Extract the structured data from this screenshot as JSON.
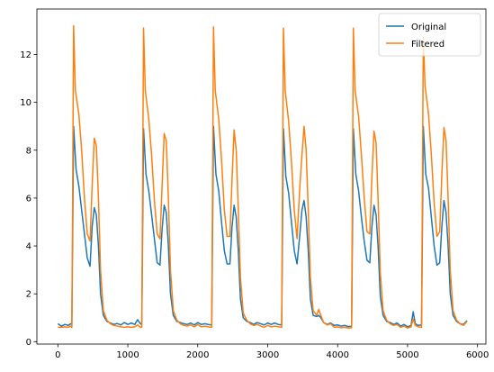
{
  "chart_data": {
    "type": "line",
    "title": "",
    "xlabel": "",
    "ylabel": "",
    "xlim": [
      -300,
      6120
    ],
    "ylim": [
      -0.1,
      13.9
    ],
    "xticks": [
      0,
      1000,
      2000,
      3000,
      4000,
      5000,
      6000
    ],
    "yticks": [
      0,
      2,
      4,
      6,
      8,
      10,
      12
    ],
    "grid": false,
    "legend_position": "top-right",
    "series": [
      {
        "name": "Original",
        "color": "#1f77b4",
        "points": [
          [
            0,
            0.75
          ],
          [
            50,
            0.65
          ],
          [
            100,
            0.72
          ],
          [
            150,
            0.68
          ],
          [
            180,
            0.75
          ],
          [
            200,
            0.72
          ],
          [
            225,
            9.0
          ],
          [
            260,
            7.2
          ],
          [
            300,
            6.5
          ],
          [
            340,
            5.5
          ],
          [
            380,
            4.5
          ],
          [
            420,
            3.5
          ],
          [
            460,
            3.15
          ],
          [
            490,
            4.8
          ],
          [
            520,
            5.6
          ],
          [
            550,
            5.3
          ],
          [
            580,
            4.0
          ],
          [
            610,
            2.0
          ],
          [
            650,
            1.1
          ],
          [
            700,
            0.85
          ],
          [
            750,
            0.78
          ],
          [
            800,
            0.72
          ],
          [
            850,
            0.76
          ],
          [
            900,
            0.7
          ],
          [
            950,
            0.8
          ],
          [
            1000,
            0.72
          ],
          [
            1050,
            0.78
          ],
          [
            1100,
            0.72
          ],
          [
            1140,
            0.92
          ],
          [
            1180,
            0.75
          ],
          [
            1200,
            0.72
          ],
          [
            1225,
            8.9
          ],
          [
            1260,
            7.0
          ],
          [
            1300,
            6.3
          ],
          [
            1340,
            5.3
          ],
          [
            1380,
            4.3
          ],
          [
            1420,
            3.3
          ],
          [
            1460,
            3.2
          ],
          [
            1490,
            4.7
          ],
          [
            1520,
            5.7
          ],
          [
            1550,
            5.4
          ],
          [
            1580,
            4.0
          ],
          [
            1610,
            2.0
          ],
          [
            1650,
            1.1
          ],
          [
            1700,
            0.85
          ],
          [
            1750,
            0.8
          ],
          [
            1800,
            0.75
          ],
          [
            1850,
            0.72
          ],
          [
            1900,
            0.78
          ],
          [
            1950,
            0.7
          ],
          [
            2000,
            0.8
          ],
          [
            2050,
            0.72
          ],
          [
            2100,
            0.75
          ],
          [
            2150,
            0.72
          ],
          [
            2200,
            0.7
          ],
          [
            2225,
            9.0
          ],
          [
            2260,
            7.0
          ],
          [
            2300,
            6.3
          ],
          [
            2340,
            5.0
          ],
          [
            2380,
            3.8
          ],
          [
            2420,
            3.25
          ],
          [
            2460,
            3.25
          ],
          [
            2490,
            4.8
          ],
          [
            2520,
            5.7
          ],
          [
            2550,
            5.2
          ],
          [
            2580,
            3.8
          ],
          [
            2610,
            1.8
          ],
          [
            2650,
            1.0
          ],
          [
            2700,
            0.85
          ],
          [
            2750,
            0.8
          ],
          [
            2800,
            0.72
          ],
          [
            2850,
            0.8
          ],
          [
            2900,
            0.75
          ],
          [
            2950,
            0.7
          ],
          [
            3000,
            0.78
          ],
          [
            3050,
            0.72
          ],
          [
            3100,
            0.78
          ],
          [
            3150,
            0.72
          ],
          [
            3200,
            0.7
          ],
          [
            3225,
            8.9
          ],
          [
            3260,
            6.9
          ],
          [
            3300,
            6.2
          ],
          [
            3340,
            5.0
          ],
          [
            3380,
            3.8
          ],
          [
            3420,
            3.25
          ],
          [
            3460,
            4.5
          ],
          [
            3490,
            5.5
          ],
          [
            3520,
            5.9
          ],
          [
            3550,
            5.2
          ],
          [
            3580,
            3.8
          ],
          [
            3610,
            1.8
          ],
          [
            3650,
            1.1
          ],
          [
            3700,
            1.05
          ],
          [
            3730,
            1.1
          ],
          [
            3760,
            1.0
          ],
          [
            3800,
            0.8
          ],
          [
            3850,
            0.72
          ],
          [
            3900,
            0.78
          ],
          [
            3950,
            0.68
          ],
          [
            4000,
            0.7
          ],
          [
            4050,
            0.65
          ],
          [
            4100,
            0.68
          ],
          [
            4150,
            0.63
          ],
          [
            4200,
            0.65
          ],
          [
            4225,
            8.9
          ],
          [
            4260,
            7.0
          ],
          [
            4300,
            6.3
          ],
          [
            4340,
            5.2
          ],
          [
            4380,
            4.2
          ],
          [
            4420,
            3.4
          ],
          [
            4460,
            3.3
          ],
          [
            4490,
            4.8
          ],
          [
            4520,
            5.7
          ],
          [
            4550,
            5.3
          ],
          [
            4580,
            3.9
          ],
          [
            4610,
            1.9
          ],
          [
            4650,
            1.1
          ],
          [
            4700,
            0.85
          ],
          [
            4750,
            0.8
          ],
          [
            4800,
            0.72
          ],
          [
            4850,
            0.78
          ],
          [
            4900,
            0.65
          ],
          [
            4950,
            0.72
          ],
          [
            5000,
            0.62
          ],
          [
            5050,
            0.68
          ],
          [
            5080,
            1.25
          ],
          [
            5110,
            0.75
          ],
          [
            5150,
            0.68
          ],
          [
            5200,
            0.7
          ],
          [
            5225,
            9.0
          ],
          [
            5260,
            7.0
          ],
          [
            5300,
            6.4
          ],
          [
            5340,
            5.2
          ],
          [
            5380,
            4.0
          ],
          [
            5420,
            3.2
          ],
          [
            5460,
            3.3
          ],
          [
            5490,
            4.8
          ],
          [
            5520,
            5.9
          ],
          [
            5550,
            5.4
          ],
          [
            5580,
            4.0
          ],
          [
            5610,
            2.0
          ],
          [
            5650,
            1.1
          ],
          [
            5700,
            0.85
          ],
          [
            5750,
            0.75
          ],
          [
            5800,
            0.72
          ],
          [
            5830,
            0.82
          ],
          [
            5850,
            0.88
          ]
        ]
      },
      {
        "name": "Filtered",
        "color": "#ff7f0e",
        "points": [
          [
            0,
            0.6
          ],
          [
            50,
            0.6
          ],
          [
            100,
            0.62
          ],
          [
            150,
            0.6
          ],
          [
            180,
            0.65
          ],
          [
            200,
            0.6
          ],
          [
            225,
            13.2
          ],
          [
            250,
            10.5
          ],
          [
            300,
            9.5
          ],
          [
            340,
            8.0
          ],
          [
            380,
            6.0
          ],
          [
            420,
            4.5
          ],
          [
            460,
            4.2
          ],
          [
            490,
            6.5
          ],
          [
            520,
            8.5
          ],
          [
            550,
            8.2
          ],
          [
            580,
            6.0
          ],
          [
            610,
            3.0
          ],
          [
            650,
            1.3
          ],
          [
            700,
            0.9
          ],
          [
            750,
            0.75
          ],
          [
            800,
            0.68
          ],
          [
            850,
            0.65
          ],
          [
            900,
            0.62
          ],
          [
            950,
            0.6
          ],
          [
            1000,
            0.62
          ],
          [
            1050,
            0.6
          ],
          [
            1100,
            0.62
          ],
          [
            1140,
            0.7
          ],
          [
            1180,
            0.6
          ],
          [
            1200,
            0.6
          ],
          [
            1225,
            13.1
          ],
          [
            1250,
            10.5
          ],
          [
            1300,
            9.3
          ],
          [
            1340,
            7.8
          ],
          [
            1380,
            5.9
          ],
          [
            1420,
            4.5
          ],
          [
            1460,
            4.3
          ],
          [
            1490,
            6.5
          ],
          [
            1520,
            8.7
          ],
          [
            1550,
            8.4
          ],
          [
            1580,
            6.0
          ],
          [
            1610,
            3.0
          ],
          [
            1650,
            1.3
          ],
          [
            1700,
            0.9
          ],
          [
            1750,
            0.75
          ],
          [
            1800,
            0.68
          ],
          [
            1850,
            0.65
          ],
          [
            1900,
            0.7
          ],
          [
            1950,
            0.62
          ],
          [
            2000,
            0.72
          ],
          [
            2050,
            0.62
          ],
          [
            2100,
            0.65
          ],
          [
            2150,
            0.62
          ],
          [
            2200,
            0.6
          ],
          [
            2225,
            13.15
          ],
          [
            2250,
            10.5
          ],
          [
            2300,
            9.3
          ],
          [
            2340,
            7.6
          ],
          [
            2380,
            5.5
          ],
          [
            2420,
            4.4
          ],
          [
            2460,
            4.4
          ],
          [
            2490,
            6.8
          ],
          [
            2520,
            8.85
          ],
          [
            2550,
            8.0
          ],
          [
            2580,
            5.5
          ],
          [
            2610,
            2.7
          ],
          [
            2650,
            1.2
          ],
          [
            2700,
            0.9
          ],
          [
            2750,
            0.75
          ],
          [
            2800,
            0.68
          ],
          [
            2850,
            0.72
          ],
          [
            2900,
            0.65
          ],
          [
            2950,
            0.6
          ],
          [
            3000,
            0.68
          ],
          [
            3050,
            0.62
          ],
          [
            3100,
            0.65
          ],
          [
            3150,
            0.62
          ],
          [
            3200,
            0.6
          ],
          [
            3225,
            13.1
          ],
          [
            3250,
            10.5
          ],
          [
            3300,
            9.2
          ],
          [
            3340,
            7.5
          ],
          [
            3380,
            5.5
          ],
          [
            3420,
            4.3
          ],
          [
            3460,
            6.5
          ],
          [
            3490,
            7.8
          ],
          [
            3520,
            9.0
          ],
          [
            3550,
            8.0
          ],
          [
            3580,
            5.5
          ],
          [
            3610,
            2.7
          ],
          [
            3650,
            1.3
          ],
          [
            3700,
            1.1
          ],
          [
            3730,
            1.35
          ],
          [
            3760,
            1.1
          ],
          [
            3800,
            0.8
          ],
          [
            3850,
            0.7
          ],
          [
            3900,
            0.75
          ],
          [
            3950,
            0.6
          ],
          [
            4000,
            0.62
          ],
          [
            4050,
            0.58
          ],
          [
            4100,
            0.6
          ],
          [
            4150,
            0.57
          ],
          [
            4200,
            0.58
          ],
          [
            4225,
            13.1
          ],
          [
            4250,
            10.5
          ],
          [
            4300,
            9.4
          ],
          [
            4340,
            7.8
          ],
          [
            4380,
            6.0
          ],
          [
            4420,
            4.6
          ],
          [
            4460,
            4.5
          ],
          [
            4490,
            6.9
          ],
          [
            4520,
            8.8
          ],
          [
            4550,
            8.3
          ],
          [
            4580,
            5.8
          ],
          [
            4610,
            2.9
          ],
          [
            4650,
            1.3
          ],
          [
            4700,
            0.9
          ],
          [
            4750,
            0.75
          ],
          [
            4800,
            0.68
          ],
          [
            4850,
            0.72
          ],
          [
            4900,
            0.6
          ],
          [
            4950,
            0.65
          ],
          [
            5000,
            0.57
          ],
          [
            5050,
            0.62
          ],
          [
            5080,
            0.95
          ],
          [
            5110,
            0.68
          ],
          [
            5150,
            0.62
          ],
          [
            5200,
            0.6
          ],
          [
            5225,
            12.7
          ],
          [
            5250,
            10.7
          ],
          [
            5300,
            9.5
          ],
          [
            5340,
            7.8
          ],
          [
            5380,
            5.8
          ],
          [
            5420,
            4.4
          ],
          [
            5460,
            4.6
          ],
          [
            5490,
            7.0
          ],
          [
            5520,
            8.95
          ],
          [
            5550,
            8.4
          ],
          [
            5580,
            6.0
          ],
          [
            5610,
            3.0
          ],
          [
            5650,
            1.3
          ],
          [
            5700,
            0.9
          ],
          [
            5750,
            0.75
          ],
          [
            5800,
            0.68
          ],
          [
            5830,
            0.78
          ],
          [
            5850,
            0.85
          ]
        ]
      }
    ]
  }
}
